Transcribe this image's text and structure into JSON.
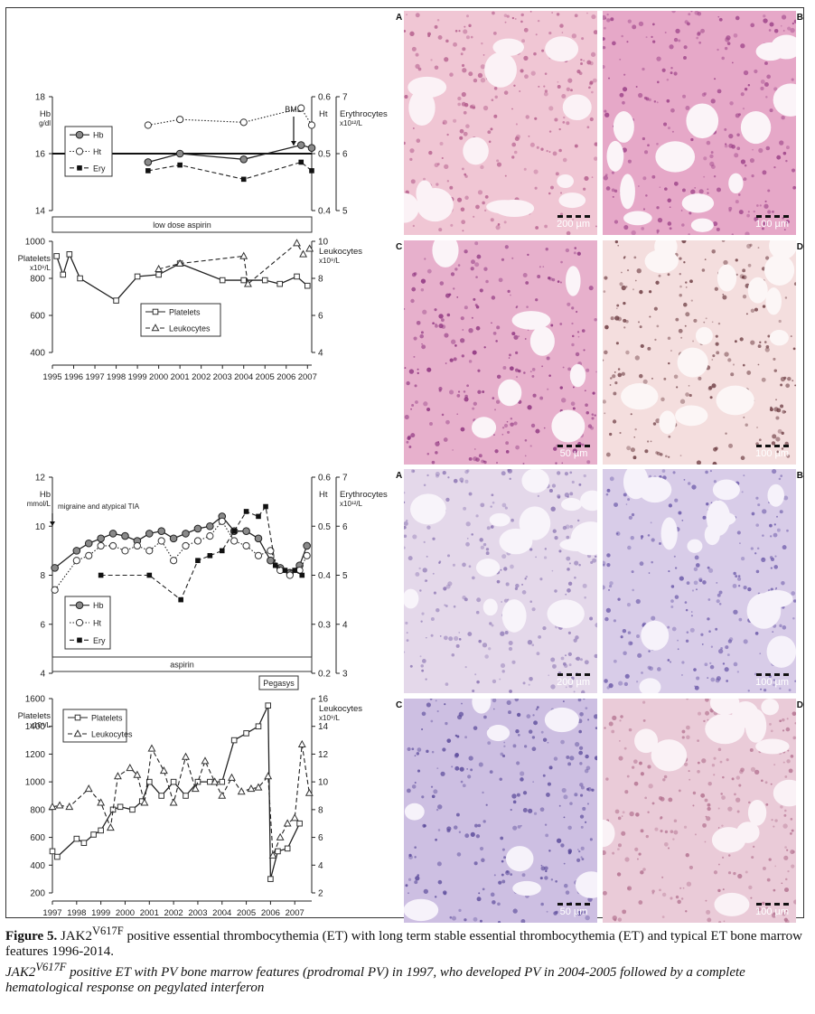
{
  "figure": {
    "panels_top": [
      {
        "letter": "A",
        "scale": "200 µm",
        "base": "#f0c6d4",
        "nucleus": "#b25a8a",
        "hole": "#fbf2f6"
      },
      {
        "letter": "B",
        "scale": "100 µm",
        "base": "#e6a8c8",
        "nucleus": "#9a3f86",
        "hole": "#fbf4f8"
      },
      {
        "letter": "C",
        "scale": "50 µm",
        "base": "#e7b0cc",
        "nucleus": "#8a2f7c",
        "hole": "#fbf4f8"
      },
      {
        "letter": "D",
        "scale": "100 µm",
        "base": "#f4dede",
        "nucleus": "#6b3a40",
        "hole": "#fcf6f6"
      }
    ],
    "panels_bottom": [
      {
        "letter": "A",
        "scale": "200 µm",
        "base": "#e4d8ea",
        "nucleus": "#8a74b2",
        "hole": "#f8f4fa"
      },
      {
        "letter": "B",
        "scale": "100 µm",
        "base": "#d8cce8",
        "nucleus": "#6a58a8",
        "hole": "#f6f2fa"
      },
      {
        "letter": "C",
        "scale": "50 µm",
        "base": "#cdbfe2",
        "nucleus": "#5a4a9a",
        "hole": "#f6f2fa"
      },
      {
        "letter": "D",
        "scale": "100 µm",
        "base": "#eacbd8",
        "nucleus": "#b2708e",
        "hole": "#faf2f6"
      }
    ]
  },
  "caption": {
    "label": "Figure 5.",
    "p1_prefix": " JAK2",
    "sup": "V617F",
    "p1_rest": " positive essential thrombocythemia (ET) with long term stable essential thrombocythemia (ET) and typical ET bone marrow features 1996-2014.",
    "p2_prefix": "JAK2",
    "p2_rest": " positive ET with PV bone marrow features (prodromal PV) in 1997, who developed PV in 2004-2005 followed by a complete hematological response on pegylated interferon"
  },
  "chart_data": [
    {
      "type": "line",
      "id": "case1-red",
      "y_left": {
        "label": "Hb",
        "unit": "g/dl",
        "lim": [
          14,
          18
        ],
        "ticks": [
          14,
          16,
          18
        ]
      },
      "y_right_ht": {
        "label": "Ht",
        "lim": [
          0.4,
          0.6
        ],
        "ticks": [
          0.4,
          0.5,
          0.6
        ]
      },
      "y_right_ery": {
        "label": "Erythrocytes",
        "unit": "x10¹²/L",
        "lim": [
          5,
          7
        ],
        "ticks": [
          5,
          6,
          7
        ]
      },
      "x_lim": [
        1995,
        2007.2
      ],
      "reference_line": 16,
      "annotation": {
        "text": "BMB",
        "x": 2006.6
      },
      "bar": {
        "label": "low dose aspirin"
      },
      "legend": [
        "Hb",
        "Ht",
        "Ery"
      ],
      "series": [
        {
          "name": "Hb",
          "axis": "left",
          "style": "solid",
          "marker": "filled-gray",
          "points": [
            [
              1999.5,
              15.7
            ],
            [
              2001,
              16.0
            ],
            [
              2004,
              15.8
            ],
            [
              2006.7,
              16.3
            ],
            [
              2007.2,
              16.2
            ]
          ]
        },
        {
          "name": "Ht",
          "axis": "ht",
          "style": "dotted",
          "marker": "open",
          "points": [
            [
              1999.5,
              0.55
            ],
            [
              2001,
              0.56
            ],
            [
              2004,
              0.555
            ],
            [
              2006.7,
              0.58
            ],
            [
              2007.2,
              0.55
            ]
          ]
        },
        {
          "name": "Ery",
          "axis": "ery",
          "style": "dashed",
          "marker": "filled-black",
          "points": [
            [
              1999.5,
              5.7
            ],
            [
              2001,
              5.8
            ],
            [
              2004,
              5.55
            ],
            [
              2006.7,
              5.85
            ],
            [
              2007.2,
              5.7
            ]
          ]
        }
      ]
    },
    {
      "type": "line",
      "id": "case1-plt",
      "y_left": {
        "label": "Platelets",
        "unit": "x10⁹/L",
        "lim": [
          400,
          1000
        ],
        "ticks": [
          400,
          600,
          800,
          1000
        ]
      },
      "y_right": {
        "label": "Leukocytes",
        "unit": "x10⁹/L",
        "lim": [
          4,
          10
        ],
        "ticks": [
          4,
          6,
          8,
          10
        ]
      },
      "x_lim": [
        1995,
        2007.2
      ],
      "x_ticks": [
        1995,
        1996,
        1997,
        1998,
        1999,
        2000,
        2001,
        2002,
        2003,
        2004,
        2005,
        2006,
        2007
      ],
      "legend": [
        "Platelets",
        "Leukocytes"
      ],
      "series": [
        {
          "name": "Platelets",
          "axis": "left",
          "style": "solid",
          "marker": "open-square",
          "points": [
            [
              1995.2,
              920
            ],
            [
              1995.5,
              820
            ],
            [
              1995.8,
              930
            ],
            [
              1996.3,
              800
            ],
            [
              1998,
              680
            ],
            [
              1999,
              810
            ],
            [
              2000,
              820
            ],
            [
              2001,
              880
            ],
            [
              2003,
              790
            ],
            [
              2004,
              790
            ],
            [
              2005,
              790
            ],
            [
              2005.7,
              770
            ],
            [
              2006.5,
              810
            ],
            [
              2007,
              760
            ]
          ]
        },
        {
          "name": "Leukocytes",
          "axis": "right",
          "style": "dashed",
          "marker": "open-triangle",
          "points": [
            [
              2000,
              8.5
            ],
            [
              2001,
              8.8
            ],
            [
              2004,
              9.2
            ],
            [
              2004.2,
              7.7
            ],
            [
              2006.5,
              9.9
            ],
            [
              2006.8,
              9.3
            ],
            [
              2007.1,
              9.6
            ]
          ]
        }
      ]
    },
    {
      "type": "line",
      "id": "case2-red",
      "y_left": {
        "label": "Hb",
        "unit": "mmol/L",
        "lim": [
          4,
          12
        ],
        "ticks": [
          4,
          6,
          8,
          10,
          12
        ]
      },
      "y_right_ht": {
        "label": "Ht",
        "lim": [
          0.2,
          0.6
        ],
        "ticks": [
          0.2,
          0.3,
          0.4,
          0.5,
          0.6
        ]
      },
      "y_right_ery": {
        "label": "Erythrocytes",
        "unit": "x10¹²/L",
        "lim": [
          3,
          7
        ],
        "ticks": [
          3,
          4,
          5,
          6,
          7
        ]
      },
      "x_lim": [
        1997,
        2007.7
      ],
      "annotation": {
        "text": "migraine and atypical TIA",
        "x": 1997
      },
      "bar": {
        "label": "aspirin"
      },
      "bar2": {
        "label": "Pegasys"
      },
      "legend": [
        "Hb",
        "Ht",
        "Ery"
      ],
      "series": [
        {
          "name": "Hb",
          "axis": "left",
          "style": "solid",
          "marker": "filled-gray",
          "points": [
            [
              1997.1,
              8.3
            ],
            [
              1998,
              9.0
            ],
            [
              1998.5,
              9.3
            ],
            [
              1999,
              9.5
            ],
            [
              1999.5,
              9.7
            ],
            [
              2000,
              9.6
            ],
            [
              2000.5,
              9.4
            ],
            [
              2001,
              9.7
            ],
            [
              2001.5,
              9.8
            ],
            [
              2002,
              9.5
            ],
            [
              2002.5,
              9.7
            ],
            [
              2003,
              9.9
            ],
            [
              2003.5,
              10.0
            ],
            [
              2004,
              10.4
            ],
            [
              2004.5,
              9.8
            ],
            [
              2005,
              9.8
            ],
            [
              2005.5,
              9.5
            ],
            [
              2006,
              8.6
            ],
            [
              2006.4,
              8.3
            ],
            [
              2006.8,
              8.1
            ],
            [
              2007.2,
              8.4
            ],
            [
              2007.5,
              9.2
            ]
          ]
        },
        {
          "name": "Ht",
          "axis": "ht",
          "style": "dotted",
          "marker": "open",
          "points": [
            [
              1997.1,
              0.37
            ],
            [
              1998,
              0.43
            ],
            [
              1998.5,
              0.44
            ],
            [
              1999,
              0.46
            ],
            [
              1999.5,
              0.46
            ],
            [
              2000,
              0.45
            ],
            [
              2000.5,
              0.46
            ],
            [
              2001,
              0.45
            ],
            [
              2001.5,
              0.47
            ],
            [
              2002,
              0.43
            ],
            [
              2002.5,
              0.46
            ],
            [
              2003,
              0.47
            ],
            [
              2003.5,
              0.48
            ],
            [
              2004,
              0.51
            ],
            [
              2004.5,
              0.47
            ],
            [
              2005,
              0.46
            ],
            [
              2005.5,
              0.44
            ],
            [
              2006,
              0.45
            ],
            [
              2006.4,
              0.41
            ],
            [
              2006.8,
              0.4
            ],
            [
              2007.2,
              0.41
            ],
            [
              2007.5,
              0.44
            ]
          ]
        },
        {
          "name": "Ery",
          "axis": "ery",
          "style": "dashed",
          "marker": "filled-black",
          "points": [
            [
              1999,
              5.0
            ],
            [
              2001,
              5.0
            ],
            [
              2002.3,
              4.5
            ],
            [
              2003,
              5.3
            ],
            [
              2003.5,
              5.4
            ],
            [
              2004,
              5.5
            ],
            [
              2004.5,
              5.9
            ],
            [
              2005,
              6.3
            ],
            [
              2005.5,
              6.2
            ],
            [
              2005.8,
              6.4
            ],
            [
              2006.2,
              5.2
            ],
            [
              2006.6,
              5.1
            ],
            [
              2007,
              5.1
            ],
            [
              2007.3,
              5.0
            ]
          ]
        }
      ]
    },
    {
      "type": "line",
      "id": "case2-plt",
      "y_left": {
        "label": "Platelets",
        "unit": "x10⁹/L",
        "lim": [
          200,
          1600
        ],
        "ticks": [
          200,
          400,
          600,
          800,
          1000,
          1200,
          1400,
          1600
        ]
      },
      "y_right": {
        "label": "Leukocytes",
        "unit": "x10⁹/L",
        "lim": [
          2,
          16
        ],
        "ticks": [
          2,
          4,
          6,
          8,
          10,
          12,
          14,
          16
        ]
      },
      "x_lim": [
        1997,
        2007.7
      ],
      "x_ticks": [
        1997,
        1998,
        1999,
        2000,
        2001,
        2002,
        2003,
        2004,
        2005,
        2006,
        2007
      ],
      "legend": [
        "Platelets",
        "Leukocytes"
      ],
      "series": [
        {
          "name": "Platelets",
          "axis": "left",
          "style": "solid",
          "marker": "open-square",
          "points": [
            [
              1997,
              500
            ],
            [
              1997.2,
              460
            ],
            [
              1998,
              590
            ],
            [
              1998.3,
              560
            ],
            [
              1998.7,
              620
            ],
            [
              1999,
              650
            ],
            [
              1999.5,
              800
            ],
            [
              1999.8,
              820
            ],
            [
              2000.3,
              800
            ],
            [
              2000.7,
              860
            ],
            [
              2001,
              1000
            ],
            [
              2001.5,
              900
            ],
            [
              2002,
              1000
            ],
            [
              2002.5,
              900
            ],
            [
              2003,
              1000
            ],
            [
              2003.5,
              1000
            ],
            [
              2004,
              1000
            ],
            [
              2004.5,
              1300
            ],
            [
              2005,
              1350
            ],
            [
              2005.5,
              1400
            ],
            [
              2005.9,
              1550
            ],
            [
              2006,
              300
            ],
            [
              2006.3,
              500
            ],
            [
              2006.7,
              520
            ],
            [
              2007.2,
              700
            ]
          ]
        },
        {
          "name": "Leukocytes",
          "axis": "right",
          "style": "dashed",
          "marker": "open-triangle",
          "points": [
            [
              1997,
              8.2
            ],
            [
              1997.3,
              8.3
            ],
            [
              1997.7,
              8.2
            ],
            [
              1998.5,
              9.5
            ],
            [
              1999,
              8.5
            ],
            [
              1999.4,
              6.7
            ],
            [
              1999.7,
              10.4
            ],
            [
              2000.2,
              11.0
            ],
            [
              2000.5,
              10.5
            ],
            [
              2000.8,
              8.5
            ],
            [
              2001.1,
              12.4
            ],
            [
              2001.6,
              10.8
            ],
            [
              2002,
              8.5
            ],
            [
              2002.5,
              11.8
            ],
            [
              2002.9,
              9.5
            ],
            [
              2003.3,
              11.5
            ],
            [
              2003.7,
              10.0
            ],
            [
              2004,
              9.0
            ],
            [
              2004.4,
              10.3
            ],
            [
              2004.8,
              9.3
            ],
            [
              2005.2,
              9.5
            ],
            [
              2005.5,
              9.6
            ],
            [
              2005.9,
              10.4
            ],
            [
              2006.1,
              4.7
            ],
            [
              2006.4,
              6.0
            ],
            [
              2006.7,
              7.0
            ],
            [
              2007,
              7.4
            ],
            [
              2007.3,
              12.7
            ],
            [
              2007.6,
              9.2
            ]
          ]
        }
      ]
    }
  ]
}
